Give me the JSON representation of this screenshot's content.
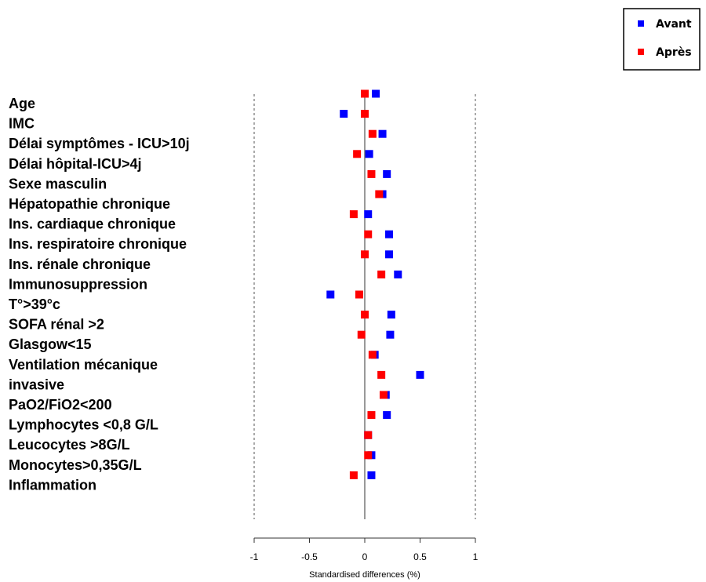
{
  "chart_data": {
    "type": "scatter",
    "title": "",
    "xlabel": "Standardised differences (%)",
    "ylabel": "",
    "xlim": [
      -1,
      1
    ],
    "xticks": [
      -1,
      -0.5,
      0,
      0.5,
      1
    ],
    "xtick_labels": [
      "-1",
      "-0.5",
      "0",
      "0.5",
      "1"
    ],
    "reference_lines": [
      -1,
      0,
      1
    ],
    "categories": [
      "Age",
      "IMC",
      "Délai  symptômes - ICU>10j",
      "Délai hôpital-ICU>4j",
      "Sexe masculin",
      "Hépatopathie chronique",
      "Ins. cardiaque chronique",
      "Ins. respiratoire chronique",
      "Ins. rénale chronique",
      "Immunosuppression",
      "T°>39°c",
      "SOFA rénal >2",
      "Glasgow<15",
      "Ventilation mécanique",
      "invasive",
      "PaO2/FiO2<200",
      "Lymphocytes <0,8 G/L",
      "Leucocytes >8G/L",
      "Monocytes>0,35G/L",
      "Inflammation"
    ],
    "series": [
      {
        "name": "Avant",
        "color": "#0000ff",
        "values": [
          0.1,
          -0.19,
          0.16,
          0.04,
          0.2,
          0.16,
          0.03,
          0.22,
          0.22,
          0.3,
          -0.31,
          0.24,
          0.23,
          0.09,
          0.5,
          0.19,
          0.2,
          0.03,
          0.06,
          0.06
        ]
      },
      {
        "name": "Après",
        "color": "#ff0000",
        "values": [
          0.0,
          0.0,
          0.07,
          -0.07,
          0.06,
          0.13,
          -0.1,
          0.03,
          0.0,
          0.15,
          -0.05,
          0.0,
          -0.03,
          0.07,
          0.15,
          0.17,
          0.06,
          0.03,
          0.03,
          -0.1
        ]
      }
    ],
    "legend": {
      "placement": "top-right",
      "entries": [
        "Avant",
        "Après"
      ]
    },
    "grid": false
  }
}
